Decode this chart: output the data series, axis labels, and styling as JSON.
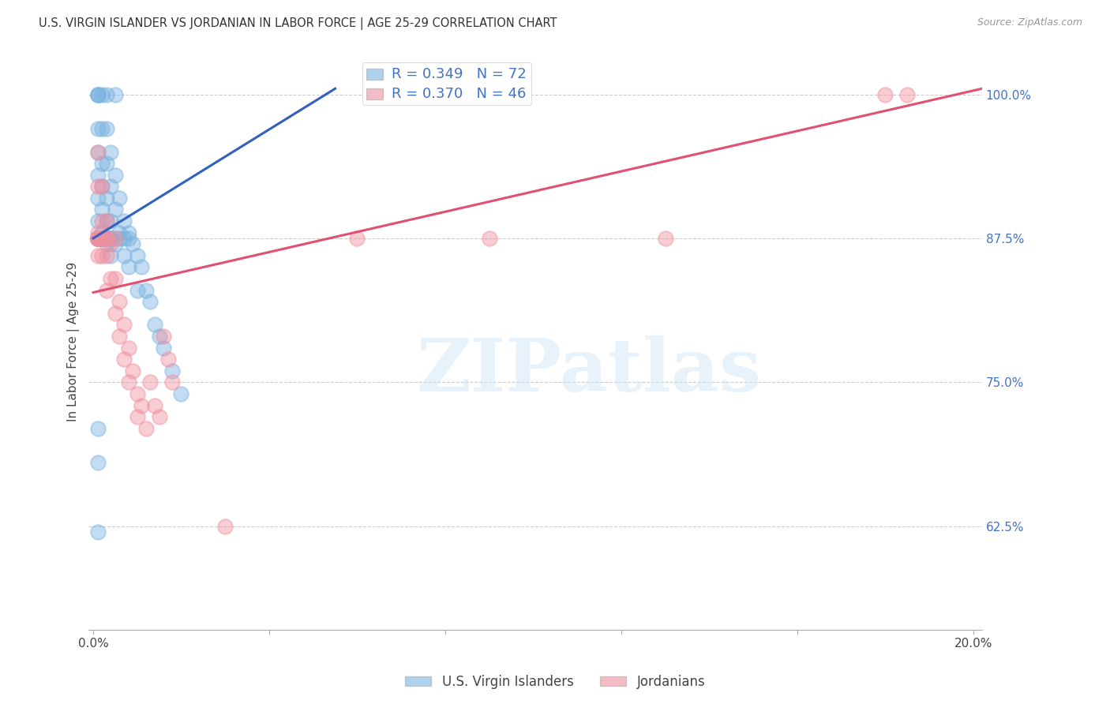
{
  "title": "U.S. VIRGIN ISLANDER VS JORDANIAN IN LABOR FORCE | AGE 25-29 CORRELATION CHART",
  "source": "Source: ZipAtlas.com",
  "ylabel": "In Labor Force | Age 25-29",
  "xlim": [
    -0.001,
    0.202
  ],
  "ylim": [
    0.535,
    1.035
  ],
  "xtick_positions": [
    0.0,
    0.04,
    0.08,
    0.12,
    0.16,
    0.2
  ],
  "xticklabels": [
    "0.0%",
    "",
    "",
    "",
    "",
    "20.0%"
  ],
  "ytick_positions": [
    0.625,
    0.75,
    0.875,
    1.0
  ],
  "yticklabels": [
    "62.5%",
    "75.0%",
    "87.5%",
    "100.0%"
  ],
  "blue_color": "#7ab3e0",
  "pink_color": "#f090a0",
  "blue_line_color": "#3060c0",
  "pink_line_color": "#e05070",
  "blue_line": {
    "x0": 0.0,
    "y0": 0.875,
    "x1": 0.055,
    "y1": 1.005
  },
  "pink_line": {
    "x0": 0.0,
    "y0": 0.828,
    "x1": 0.202,
    "y1": 1.005
  },
  "watermark": "ZIPatlas",
  "background_color": "#ffffff",
  "grid_color": "#cccccc",
  "blue_scatter": {
    "x": [
      0.001,
      0.001,
      0.001,
      0.001,
      0.001,
      0.001,
      0.001,
      0.001,
      0.002,
      0.002,
      0.002,
      0.002,
      0.002,
      0.002,
      0.003,
      0.003,
      0.003,
      0.003,
      0.003,
      0.004,
      0.004,
      0.004,
      0.004,
      0.005,
      0.005,
      0.005,
      0.006,
      0.006,
      0.007,
      0.007,
      0.008,
      0.008,
      0.009,
      0.01,
      0.01,
      0.011,
      0.012,
      0.013,
      0.014,
      0.015,
      0.016,
      0.018,
      0.02,
      0.003,
      0.005,
      0.001,
      0.001,
      0.002,
      0.002,
      0.003,
      0.001,
      0.001,
      0.001,
      0.001,
      0.001,
      0.001,
      0.001,
      0.002,
      0.002,
      0.002,
      0.004,
      0.004,
      0.004,
      0.006,
      0.007,
      0.008,
      0.001,
      0.001,
      0.001,
      0.002,
      0.003
    ],
    "y": [
      1.0,
      1.0,
      1.0,
      0.97,
      0.95,
      0.93,
      0.91,
      0.89,
      1.0,
      0.97,
      0.94,
      0.92,
      0.9,
      0.88,
      0.97,
      0.94,
      0.91,
      0.89,
      0.87,
      0.95,
      0.92,
      0.89,
      0.86,
      0.93,
      0.9,
      0.87,
      0.91,
      0.88,
      0.89,
      0.86,
      0.88,
      0.85,
      0.87,
      0.86,
      0.83,
      0.85,
      0.83,
      0.82,
      0.8,
      0.79,
      0.78,
      0.76,
      0.74,
      1.0,
      1.0,
      0.875,
      0.875,
      0.875,
      0.875,
      0.875,
      0.875,
      0.875,
      0.875,
      0.875,
      0.875,
      0.875,
      0.875,
      0.875,
      0.875,
      0.875,
      0.875,
      0.875,
      0.875,
      0.875,
      0.875,
      0.875,
      0.71,
      0.68,
      0.62,
      0.875,
      0.875
    ]
  },
  "pink_scatter": {
    "x": [
      0.001,
      0.001,
      0.001,
      0.001,
      0.002,
      0.002,
      0.002,
      0.003,
      0.003,
      0.003,
      0.004,
      0.004,
      0.005,
      0.005,
      0.006,
      0.006,
      0.007,
      0.007,
      0.008,
      0.008,
      0.009,
      0.01,
      0.01,
      0.011,
      0.012,
      0.013,
      0.014,
      0.015,
      0.016,
      0.017,
      0.018,
      0.003,
      0.005,
      0.001,
      0.001,
      0.002,
      0.002,
      0.003,
      0.001,
      0.001,
      0.001,
      0.06,
      0.09,
      0.13,
      0.18,
      0.185,
      0.03
    ],
    "y": [
      0.95,
      0.92,
      0.88,
      0.86,
      0.92,
      0.89,
      0.86,
      0.89,
      0.86,
      0.83,
      0.87,
      0.84,
      0.84,
      0.81,
      0.82,
      0.79,
      0.8,
      0.77,
      0.78,
      0.75,
      0.76,
      0.74,
      0.72,
      0.73,
      0.71,
      0.75,
      0.73,
      0.72,
      0.79,
      0.77,
      0.75,
      0.875,
      0.875,
      0.875,
      0.875,
      0.875,
      0.875,
      0.875,
      0.875,
      0.875,
      0.875,
      0.875,
      0.875,
      0.875,
      1.0,
      1.0,
      0.625
    ]
  }
}
